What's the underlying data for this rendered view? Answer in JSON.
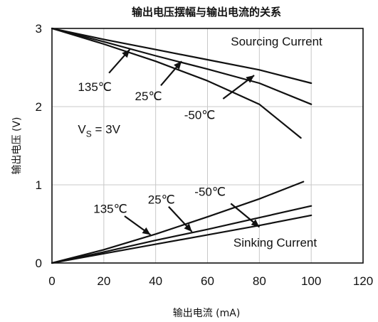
{
  "chart_data": {
    "type": "line",
    "title": "输出电压摆幅与输出电流的关系",
    "xlabel": "输出电流 (mA)",
    "ylabel": "输出电压 (V)",
    "xlim": [
      0,
      120
    ],
    "ylim": [
      0,
      3
    ],
    "xticks": [
      0,
      20,
      40,
      60,
      80,
      100,
      120
    ],
    "yticks": [
      0,
      1,
      2,
      3
    ],
    "grid": true,
    "series": [
      {
        "group": "sourcing",
        "temp": "135℃",
        "x": [
          0,
          20,
          40,
          60,
          80,
          100
        ],
        "y": [
          3.0,
          2.86,
          2.73,
          2.6,
          2.47,
          2.3
        ]
      },
      {
        "group": "sourcing",
        "temp": "25℃",
        "x": [
          0,
          20,
          40,
          60,
          80,
          100
        ],
        "y": [
          3.0,
          2.83,
          2.65,
          2.48,
          2.3,
          2.03
        ]
      },
      {
        "group": "sourcing",
        "temp": "-50℃",
        "x": [
          0,
          20,
          40,
          60,
          80,
          96
        ],
        "y": [
          3.0,
          2.8,
          2.58,
          2.33,
          2.03,
          1.6
        ]
      },
      {
        "group": "sinking",
        "temp": "135℃",
        "x": [
          0,
          20,
          40,
          60,
          80,
          97
        ],
        "y": [
          0.0,
          0.17,
          0.37,
          0.59,
          0.82,
          1.04
        ]
      },
      {
        "group": "sinking",
        "temp": "25℃",
        "x": [
          0,
          20,
          40,
          60,
          80,
          100
        ],
        "y": [
          0.0,
          0.14,
          0.29,
          0.43,
          0.58,
          0.73
        ]
      },
      {
        "group": "sinking",
        "temp": "-50℃",
        "x": [
          0,
          20,
          40,
          60,
          80,
          100
        ],
        "y": [
          0.0,
          0.12,
          0.24,
          0.36,
          0.48,
          0.61
        ]
      }
    ],
    "annotations": [
      {
        "name": "sourcing-current-label",
        "text": "Sourcing Current",
        "at": [
          69,
          2.78
        ],
        "anchor": "start"
      },
      {
        "name": "sinking-current-label",
        "text": "Sinking Current",
        "at": [
          70,
          0.21
        ],
        "anchor": "start"
      },
      {
        "name": "vs-label",
        "text": "V",
        "sub": "S",
        "rest": " = 3V",
        "at": [
          10,
          1.66
        ],
        "anchor": "start"
      },
      {
        "name": "src-135-label",
        "text": "135℃",
        "at": [
          10,
          2.2
        ],
        "anchor": "start",
        "arrow_to": [
          30,
          2.73
        ],
        "arrow_from": [
          22,
          2.43
        ]
      },
      {
        "name": "src-25-label",
        "text": "25℃",
        "at": [
          32,
          2.08
        ],
        "anchor": "start",
        "arrow_to": [
          50,
          2.58
        ],
        "arrow_from": [
          42,
          2.27
        ]
      },
      {
        "name": "src-m50-label",
        "text": "-50℃",
        "at": [
          51,
          1.84
        ],
        "anchor": "start",
        "arrow_to": [
          78,
          2.4
        ],
        "arrow_from": [
          66,
          2.1
        ]
      },
      {
        "name": "sink-135-label",
        "text": "135℃",
        "at": [
          16,
          0.64
        ],
        "anchor": "start",
        "arrow_to": [
          38,
          0.36
        ],
        "arrow_from": [
          28,
          0.6
        ]
      },
      {
        "name": "sink-25-label",
        "text": "25℃",
        "at": [
          37,
          0.76
        ],
        "anchor": "start",
        "arrow_to": [
          54,
          0.4
        ],
        "arrow_from": [
          45,
          0.72
        ]
      },
      {
        "name": "sink-m50-label",
        "text": "-50℃",
        "at": [
          55,
          0.86
        ],
        "anchor": "start",
        "arrow_to": [
          80,
          0.46
        ],
        "arrow_from": [
          69,
          0.76
        ]
      }
    ]
  }
}
